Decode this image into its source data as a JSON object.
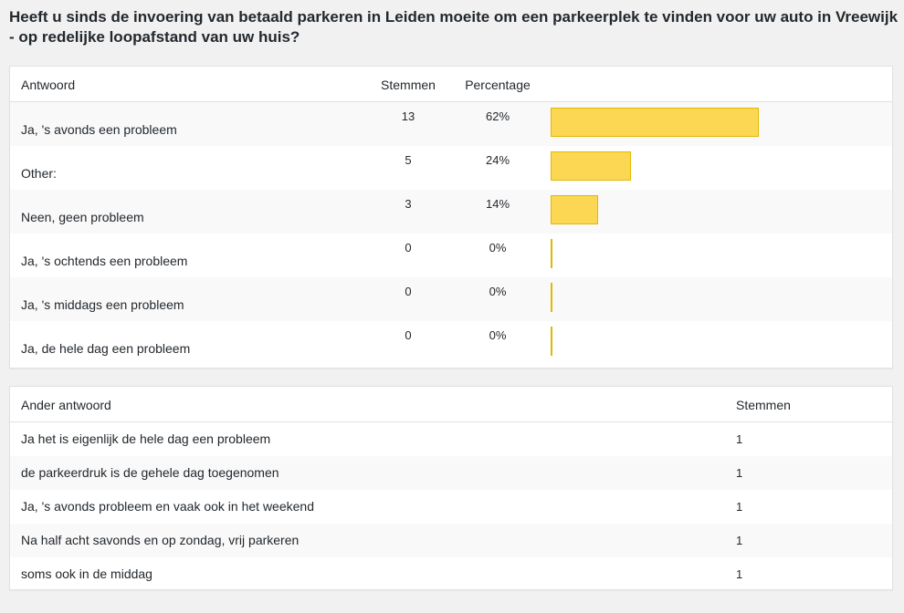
{
  "question": "Heeft u sinds de invoering van betaald parkeren in Leiden moeite om een parkeerplek te vinden voor uw auto in Vreewijk - op redelijke loopafstand van uw huis?",
  "results": {
    "headers": {
      "answer": "Antwoord",
      "votes": "Stemmen",
      "percentage": "Percentage"
    },
    "rows": [
      {
        "label": "Ja, 's avonds een probleem",
        "votes": "13",
        "percentage": "62%",
        "fraction": 0.62
      },
      {
        "label": "Other:",
        "votes": "5",
        "percentage": "24%",
        "fraction": 0.24
      },
      {
        "label": "Neen, geen probleem",
        "votes": "3",
        "percentage": "14%",
        "fraction": 0.14
      },
      {
        "label": "Ja, 's ochtends een probleem",
        "votes": "0",
        "percentage": "0%",
        "fraction": 0
      },
      {
        "label": "Ja, 's middags een probleem",
        "votes": "0",
        "percentage": "0%",
        "fraction": 0
      },
      {
        "label": "Ja, de hele dag een probleem",
        "votes": "0",
        "percentage": "0%",
        "fraction": 0
      }
    ]
  },
  "other_answers": {
    "headers": {
      "answer": "Ander antwoord",
      "votes": "Stemmen"
    },
    "rows": [
      {
        "text": "Ja het is eigenlijk de hele dag een probleem",
        "votes": "1"
      },
      {
        "text": "de parkeerdruk is de gehele dag toegenomen",
        "votes": "1"
      },
      {
        "text": "Ja, 's avonds probleem en vaak ook in het weekend",
        "votes": "1"
      },
      {
        "text": "Na half acht savonds en op zondag, vrij parkeren",
        "votes": "1"
      },
      {
        "text": "soms ook in de middag",
        "votes": "1"
      }
    ]
  },
  "colors": {
    "bar_fill": "#fcd753",
    "bar_border": "#e2b800"
  }
}
